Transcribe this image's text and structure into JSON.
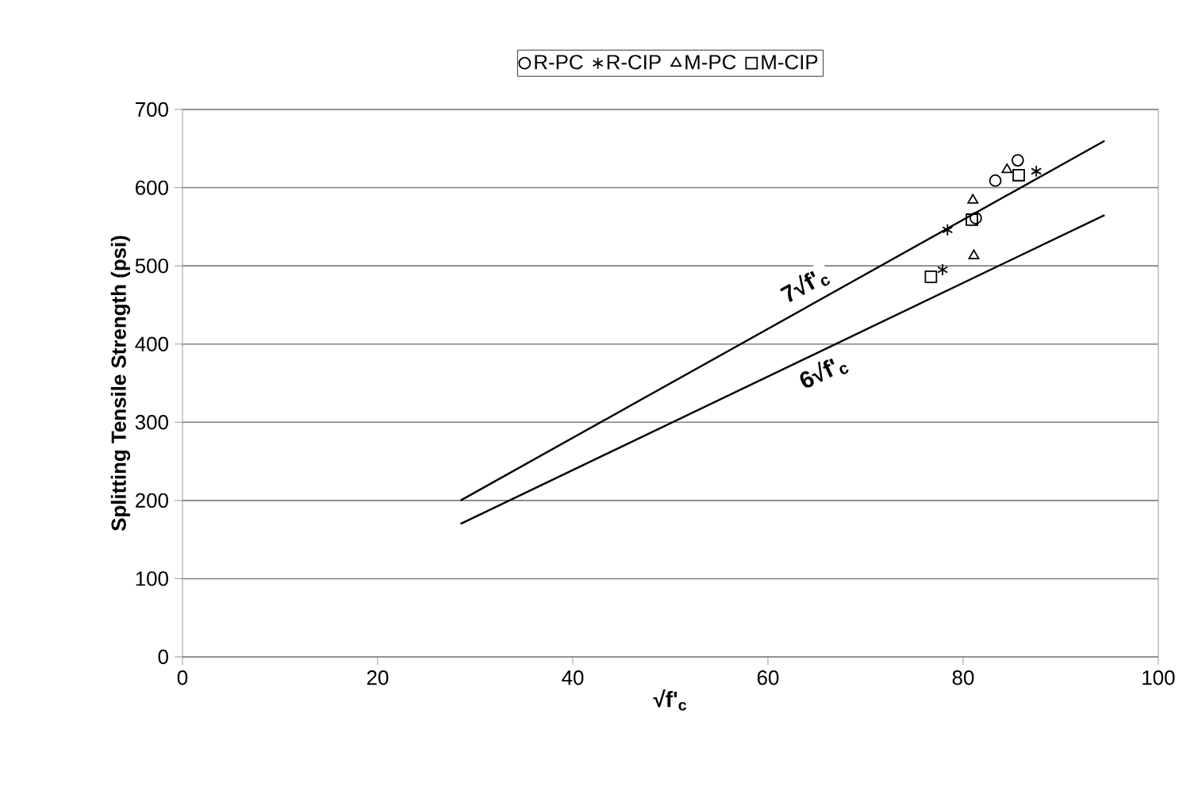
{
  "chart_data": {
    "type": "scatter",
    "xlabel": "√f'$_{c}$",
    "ylabel": "Splitting Tensile Strength (psi)",
    "xlim": [
      0,
      100
    ],
    "xticks": [
      0,
      20,
      40,
      60,
      80,
      100
    ],
    "ylim": [
      0,
      700
    ],
    "yticks": [
      0,
      100,
      200,
      300,
      400,
      500,
      600,
      700
    ],
    "grid": "y",
    "legend": "top",
    "series": [
      {
        "name": "R-PC",
        "color": "#000000",
        "marker": "circle",
        "x": [
          83.3,
          85.6,
          81.3
        ],
        "values": [
          609,
          635,
          561
        ]
      },
      {
        "name": "R-CIP",
        "color": "#000000",
        "marker": "cross",
        "x": [
          87.5,
          78.4,
          77.9
        ],
        "values": [
          621,
          546,
          495
        ]
      },
      {
        "name": "M-PC",
        "color": "#000000",
        "marker": "triangle",
        "x": [
          84.5,
          81,
          81.1
        ],
        "values": [
          623,
          584,
          513
        ]
      },
      {
        "name": "M-CIP",
        "color": "#000000",
        "marker": "square",
        "x": [
          85.7,
          80.9,
          76.7
        ],
        "values": [
          616,
          559,
          486
        ]
      },
      {
        "name": "7√f'$_{c}$",
        "type": "line",
        "color": "#000000",
        "marker": "none",
        "line_style": "solid",
        "x": [
          28.5,
          94.5
        ],
        "values": [
          200,
          660
        ]
      },
      {
        "name": "6√f'$_{c}$",
        "type": "line",
        "color": "#000000",
        "marker": "none",
        "line_style": "solid",
        "x": [
          28.5,
          94.5
        ],
        "values": [
          170,
          565
        ]
      }
    ]
  }
}
